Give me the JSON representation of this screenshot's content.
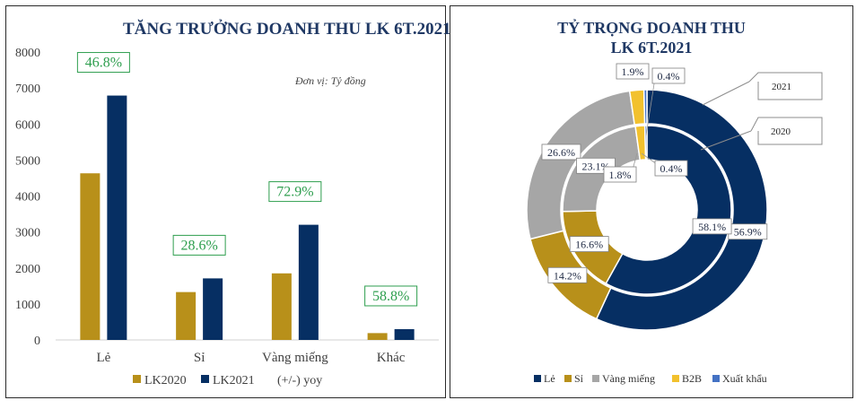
{
  "colors": {
    "lk2020": "#b8901a",
    "lk2021": "#062f63",
    "yoy": "#2e9e4e",
    "le": "#062f63",
    "si": "#b8901a",
    "vang": "#a6a6a6",
    "b2b": "#f2c12e",
    "xuat": "#4472c4"
  },
  "chart_data": [
    {
      "type": "bar",
      "title": "TĂNG TRƯỞNG DOANH THU LK 6T.2021",
      "unit_note": "Đơn vị: Tỷ đồng",
      "categories": [
        "Lẻ",
        "Sỉ",
        "Vàng miếng",
        "Khác"
      ],
      "series": [
        {
          "name": "LK2020",
          "values": [
            4630,
            1330,
            1850,
            190
          ]
        },
        {
          "name": "LK2021",
          "values": [
            6790,
            1710,
            3200,
            300
          ]
        }
      ],
      "yoy": {
        "name": "(+/-) yoy",
        "labels": [
          "46.8%",
          "28.6%",
          "72.9%",
          "58.8%"
        ]
      },
      "ylim": [
        0,
        8000
      ],
      "yticks": [
        "0",
        "1000",
        "2000",
        "3000",
        "4000",
        "5000",
        "6000",
        "7000",
        "8000"
      ]
    },
    {
      "type": "pie",
      "title_line1": "TỶ TRỌNG DOANH THU",
      "title_line2": "LK 6T.2021",
      "categories": [
        "Lẻ",
        "Sỉ",
        "Vàng miếng",
        "B2B",
        "Xuất khẩu"
      ],
      "series": [
        {
          "name": "2021",
          "values": [
            56.9,
            14.2,
            26.6,
            1.9,
            0.4
          ],
          "labels": [
            "56.9%",
            "14.2%",
            "26.6%",
            "1.9%",
            "0.4%"
          ]
        },
        {
          "name": "2020",
          "values": [
            58.1,
            16.6,
            23.1,
            1.8,
            0.4
          ],
          "labels": [
            "58.1%",
            "16.6%",
            "23.1%",
            "1.8%",
            "0.4%"
          ]
        }
      ]
    }
  ]
}
